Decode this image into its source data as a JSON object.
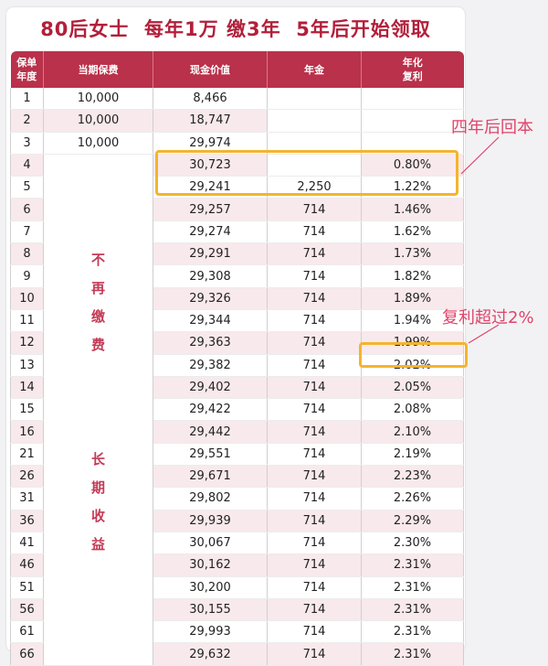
{
  "title": "80后女士  每年1万 缴3年  5年后开始领取",
  "headers": {
    "year": [
      "保单",
      "年度"
    ],
    "premium": "当期保费",
    "cash_value": "现金价值",
    "annuity": "年金",
    "rate": [
      "年化",
      "复利"
    ]
  },
  "notes": {
    "no_more_payment": [
      "不",
      "再",
      "缴",
      "费"
    ],
    "long_term": [
      "长",
      "期",
      "收",
      "益"
    ]
  },
  "annotations": {
    "break_even": "四年后回本",
    "over_two_percent": "复利超过2%"
  },
  "colors": {
    "header_bg": "#b9314a",
    "title": "#b21f3a",
    "highlight": "#f5b42f",
    "annotation": "#e0446a"
  },
  "rows": [
    {
      "year": "1",
      "premium": "10,000",
      "cash": "8,466",
      "annuity": "",
      "rate": ""
    },
    {
      "year": "2",
      "premium": "10,000",
      "cash": "18,747",
      "annuity": "",
      "rate": ""
    },
    {
      "year": "3",
      "premium": "10,000",
      "cash": "29,974",
      "annuity": "",
      "rate": ""
    },
    {
      "year": "4",
      "premium": "",
      "cash": "30,723",
      "annuity": "",
      "rate": "0.80%"
    },
    {
      "year": "5",
      "premium": "",
      "cash": "29,241",
      "annuity": "2,250",
      "rate": "1.22%"
    },
    {
      "year": "6",
      "premium": "",
      "cash": "29,257",
      "annuity": "714",
      "rate": "1.46%"
    },
    {
      "year": "7",
      "premium": "",
      "cash": "29,274",
      "annuity": "714",
      "rate": "1.62%"
    },
    {
      "year": "8",
      "premium": "",
      "cash": "29,291",
      "annuity": "714",
      "rate": "1.73%"
    },
    {
      "year": "9",
      "premium": "",
      "cash": "29,308",
      "annuity": "714",
      "rate": "1.82%"
    },
    {
      "year": "10",
      "premium": "",
      "cash": "29,326",
      "annuity": "714",
      "rate": "1.89%"
    },
    {
      "year": "11",
      "premium": "",
      "cash": "29,344",
      "annuity": "714",
      "rate": "1.94%"
    },
    {
      "year": "12",
      "premium": "",
      "cash": "29,363",
      "annuity": "714",
      "rate": "1.99%"
    },
    {
      "year": "13",
      "premium": "",
      "cash": "29,382",
      "annuity": "714",
      "rate": "2.02%"
    },
    {
      "year": "14",
      "premium": "",
      "cash": "29,402",
      "annuity": "714",
      "rate": "2.05%"
    },
    {
      "year": "15",
      "premium": "",
      "cash": "29,422",
      "annuity": "714",
      "rate": "2.08%"
    },
    {
      "year": "16",
      "premium": "",
      "cash": "29,442",
      "annuity": "714",
      "rate": "2.10%"
    },
    {
      "year": "21",
      "premium": "",
      "cash": "29,551",
      "annuity": "714",
      "rate": "2.19%"
    },
    {
      "year": "26",
      "premium": "",
      "cash": "29,671",
      "annuity": "714",
      "rate": "2.23%"
    },
    {
      "year": "31",
      "premium": "",
      "cash": "29,802",
      "annuity": "714",
      "rate": "2.26%"
    },
    {
      "year": "36",
      "premium": "",
      "cash": "29,939",
      "annuity": "714",
      "rate": "2.29%"
    },
    {
      "year": "41",
      "premium": "",
      "cash": "30,067",
      "annuity": "714",
      "rate": "2.30%"
    },
    {
      "year": "46",
      "premium": "",
      "cash": "30,162",
      "annuity": "714",
      "rate": "2.31%"
    },
    {
      "year": "51",
      "premium": "",
      "cash": "30,200",
      "annuity": "714",
      "rate": "2.31%"
    },
    {
      "year": "56",
      "premium": "",
      "cash": "30,155",
      "annuity": "714",
      "rate": "2.31%"
    },
    {
      "year": "61",
      "premium": "",
      "cash": "29,993",
      "annuity": "714",
      "rate": "2.31%"
    },
    {
      "year": "66",
      "premium": "",
      "cash": "29,632",
      "annuity": "714",
      "rate": "2.31%"
    }
  ]
}
